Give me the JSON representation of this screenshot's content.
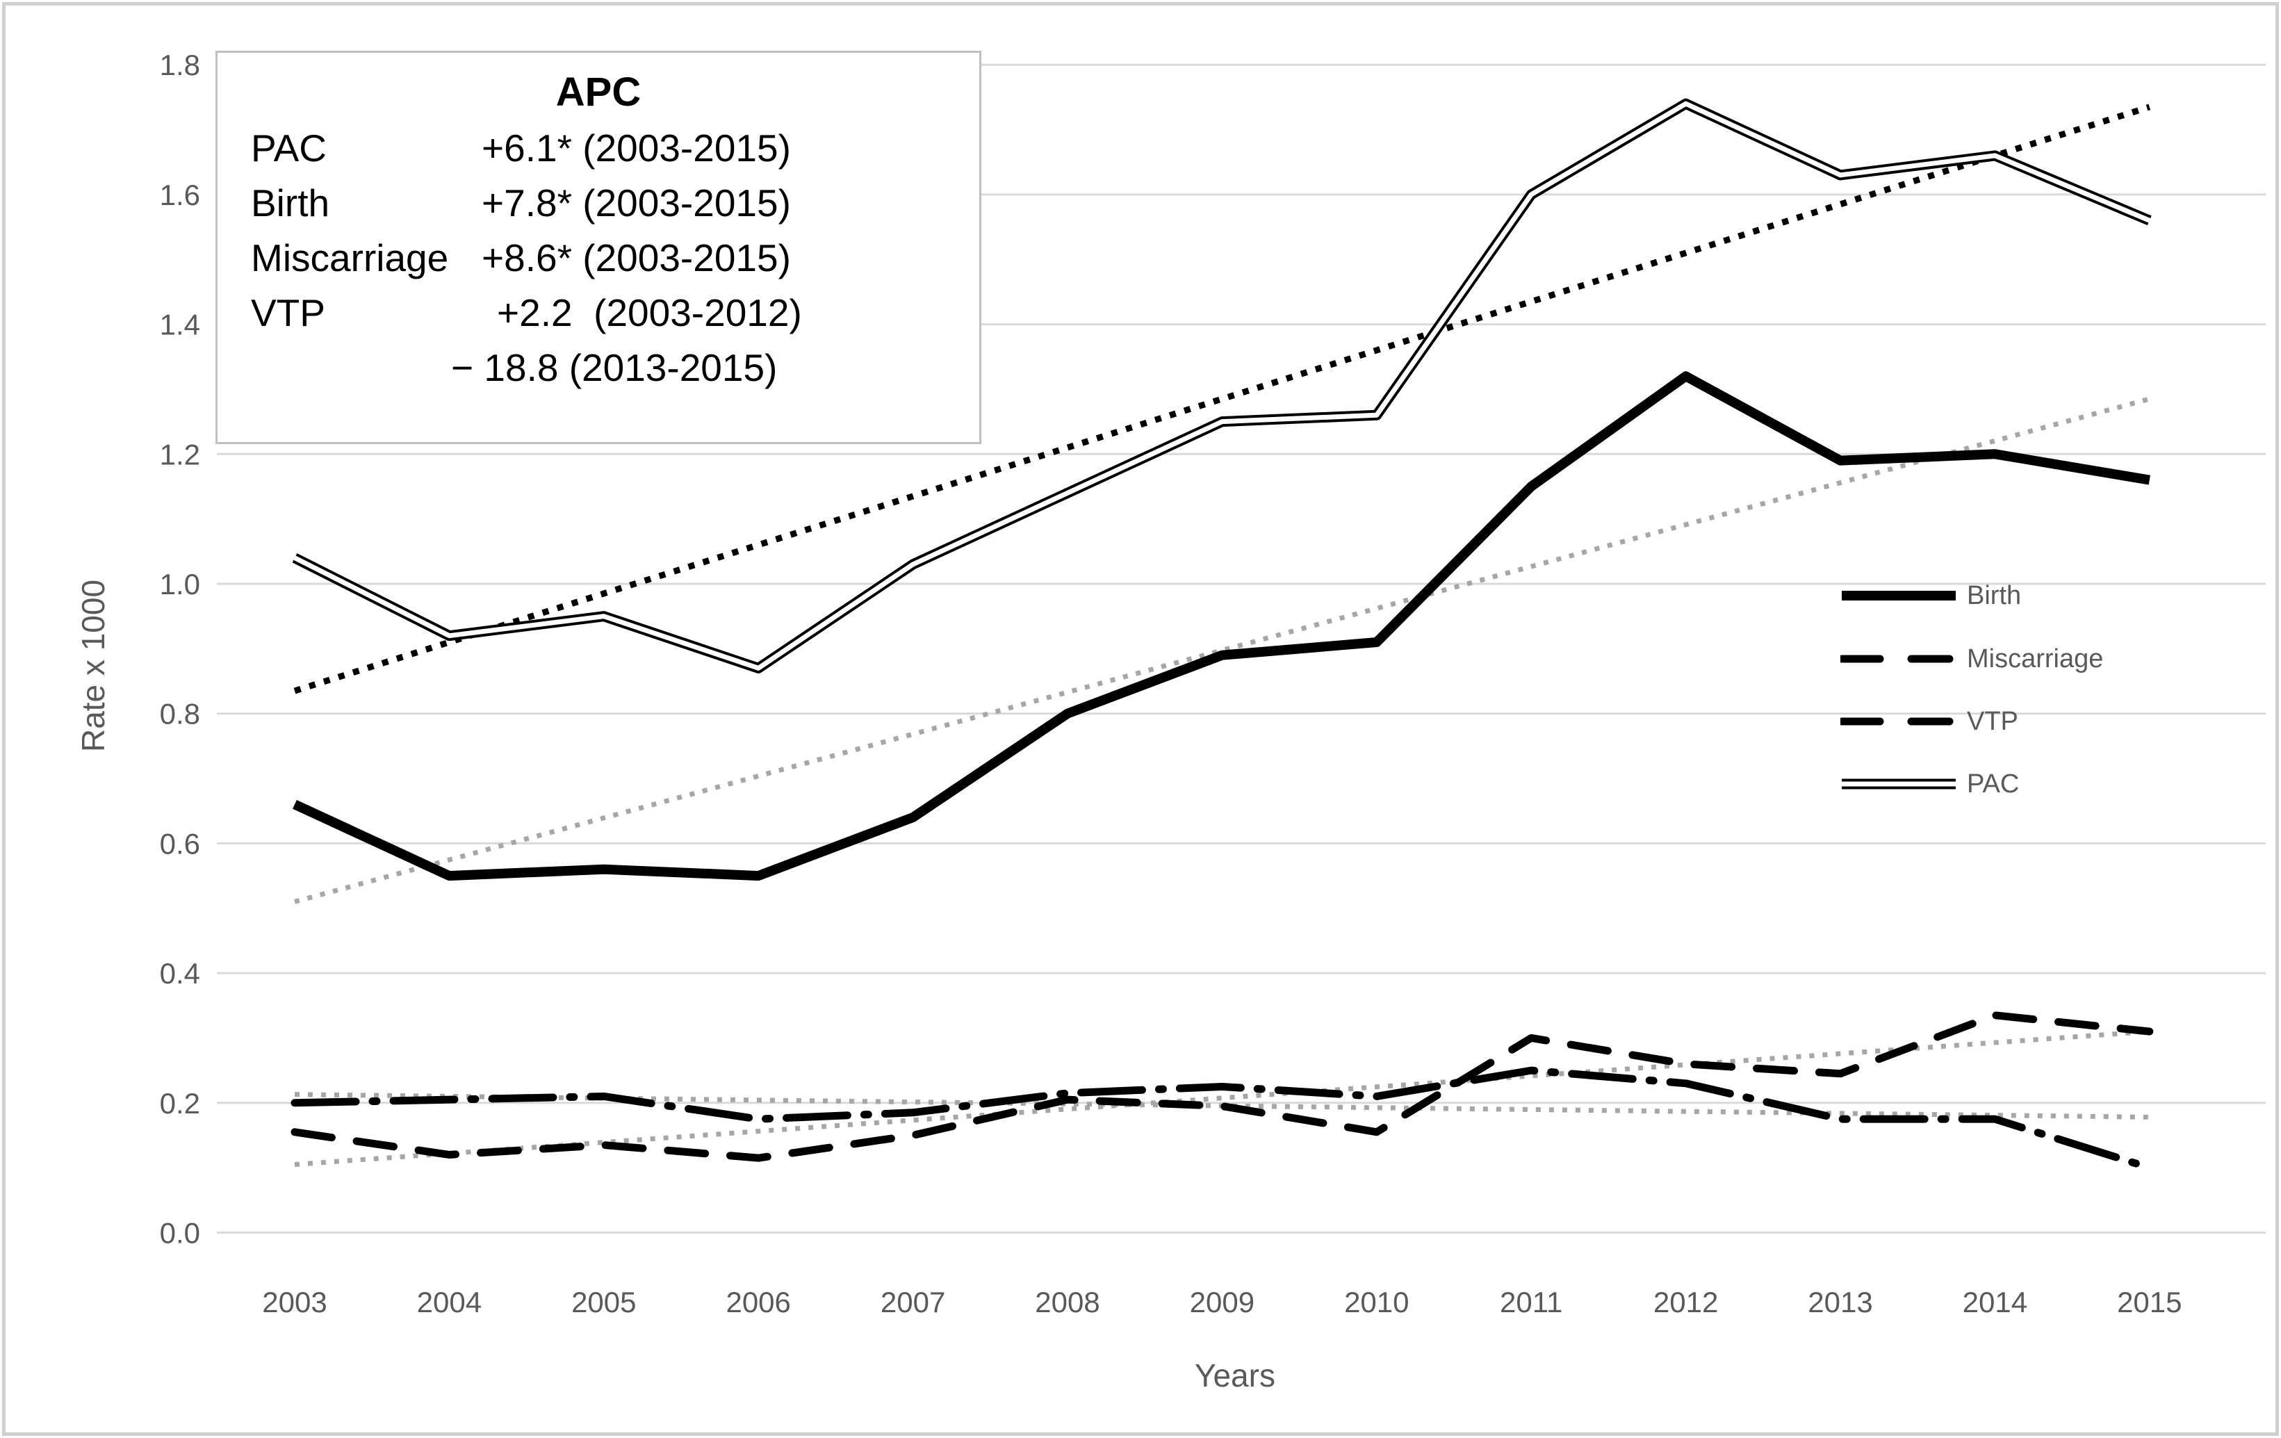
{
  "chart_data": {
    "type": "line",
    "title": "",
    "xlabel": "Years",
    "ylabel": "Rate x 1000",
    "x": [
      2003,
      2004,
      2005,
      2006,
      2007,
      2008,
      2009,
      2010,
      2011,
      2012,
      2013,
      2014,
      2015
    ],
    "ylim": [
      0.0,
      1.8
    ],
    "ytick_step": 0.2,
    "grid": "horizontal",
    "legend_position": "right",
    "series": [
      {
        "name": "Birth",
        "style": "solid-thick",
        "values": [
          0.66,
          0.55,
          0.56,
          0.55,
          0.64,
          0.8,
          0.89,
          0.91,
          1.15,
          1.32,
          1.19,
          1.2,
          1.16
        ]
      },
      {
        "name": "Miscarriage",
        "style": "dashed",
        "values": [
          0.155,
          0.12,
          0.135,
          0.115,
          0.15,
          0.205,
          0.195,
          0.155,
          0.3,
          0.26,
          0.245,
          0.335,
          0.31
        ]
      },
      {
        "name": "VTP",
        "style": "long-dash-dot",
        "values": [
          0.2,
          0.205,
          0.21,
          0.175,
          0.185,
          0.215,
          0.225,
          0.21,
          0.25,
          0.23,
          0.175,
          0.175,
          0.1
        ]
      },
      {
        "name": "PAC",
        "style": "double-line",
        "values": [
          1.04,
          0.92,
          0.95,
          0.87,
          1.03,
          1.14,
          1.25,
          1.26,
          1.6,
          1.74,
          1.63,
          1.66,
          1.56
        ]
      }
    ],
    "trendlines": [
      {
        "for": "PAC",
        "color": "#000000",
        "start": 0.835,
        "end": 1.735
      },
      {
        "for": "Birth",
        "color": "#a6a6a6",
        "start": 0.51,
        "end": 1.285
      },
      {
        "for": "Miscarriage",
        "color": "#a6a6a6",
        "start": 0.105,
        "end": 0.31
      },
      {
        "for": "VTP",
        "color": "#a6a6a6",
        "start": 0.213,
        "end": 0.178
      }
    ]
  },
  "apc": {
    "title": "APC",
    "rows": [
      {
        "label": "PAC",
        "value": "+6.1* (2003-2015)"
      },
      {
        "label": "Birth",
        "value": "+7.8* (2003-2015)"
      },
      {
        "label": "Miscarriage",
        "value": "+8.6* (2003-2015)"
      },
      {
        "label": "VTP",
        "value": "+2.2  (2003-2012)"
      },
      {
        "label": "",
        "value": "− 18.8 (2013-2015)"
      }
    ]
  },
  "legend": {
    "items": [
      "Birth",
      "Miscarriage",
      "VTP",
      "PAC"
    ]
  },
  "colors": {
    "line": "#000000",
    "grid": "#d9d9d9",
    "axis_text": "#595959",
    "trend_gray": "#a6a6a6",
    "frame": "#cfcfcf"
  }
}
